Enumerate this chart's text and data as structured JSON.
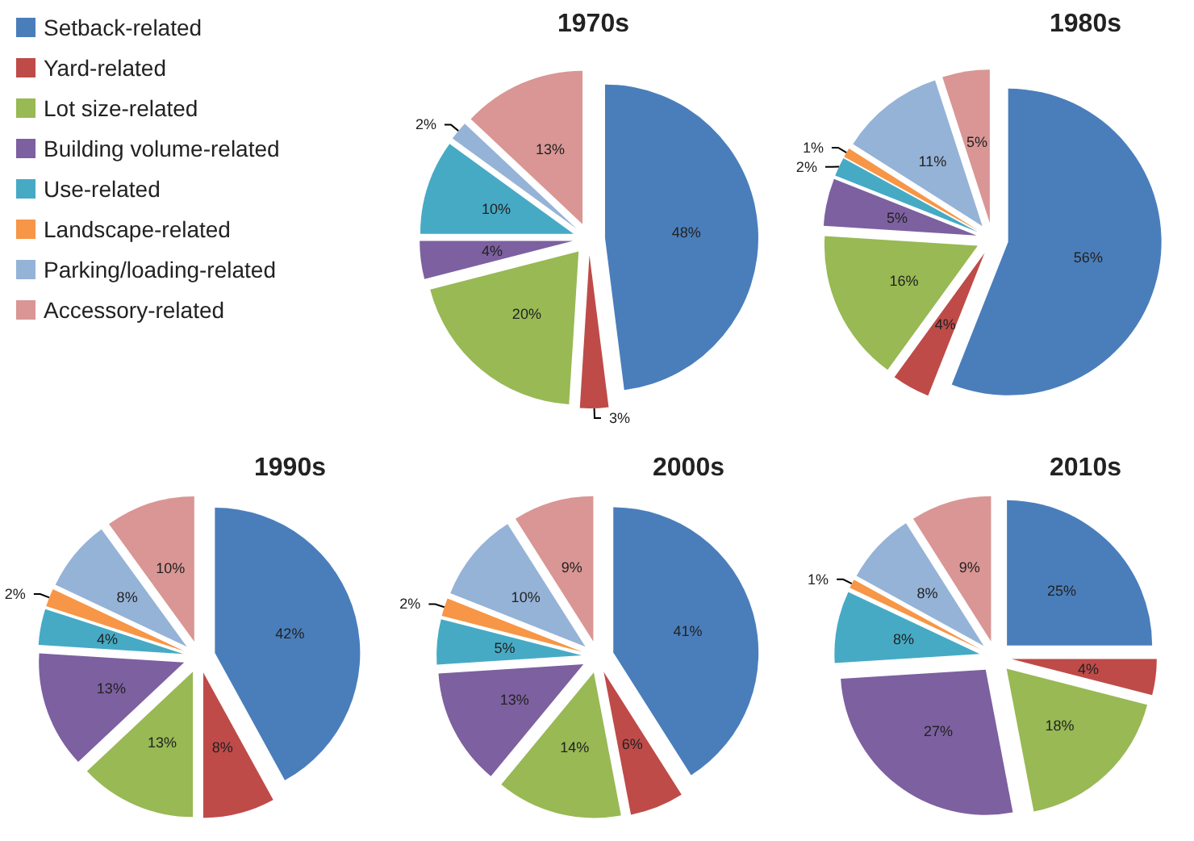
{
  "chart_data": [
    {
      "type": "pie",
      "title": "1970s",
      "legend": "left",
      "categories": [
        "Setback-related",
        "Yard-related",
        "Lot size-related",
        "Building volume-related",
        "Use-related",
        "Landscape-related",
        "Parking/loading-related",
        "Accessory-related"
      ],
      "colors": [
        "#4a7ebb",
        "#be4b48",
        "#98b954",
        "#7d60a0",
        "#46aac5",
        "#f79646",
        "#95b3d7",
        "#d99694"
      ],
      "values": [
        48,
        3,
        20,
        4,
        10,
        null,
        2,
        13
      ],
      "value_labels": [
        "48%",
        "3%",
        "20%",
        "4%",
        "10%",
        null,
        "2%",
        "13%"
      ]
    },
    {
      "type": "pie",
      "title": "1980s",
      "categories": [
        null,
        null,
        null,
        null,
        null,
        null,
        null,
        null
      ],
      "colors": [
        "#4a7ebb",
        "#be4b48",
        "#98b954",
        "#7d60a0",
        "#46aac5",
        "#f79646",
        "#95b3d7",
        "#d99694"
      ],
      "values": [
        56,
        4,
        16,
        5,
        2,
        1,
        11,
        5
      ],
      "value_labels": [
        "56%",
        "4%",
        "16%",
        "5%",
        "2%",
        "1%",
        "11%",
        "5%"
      ]
    },
    {
      "type": "pie",
      "title": "1990s",
      "categories": [
        null,
        null,
        null,
        null,
        null,
        null,
        null,
        null
      ],
      "colors": [
        "#4a7ebb",
        "#be4b48",
        "#98b954",
        "#7d60a0",
        "#46aac5",
        "#f79646",
        "#95b3d7",
        "#d99694"
      ],
      "values": [
        42,
        8,
        13,
        13,
        4,
        2,
        8,
        10
      ],
      "value_labels": [
        "42%",
        "8%",
        "13%",
        "13%",
        "4%",
        "2%",
        "8%",
        "10%"
      ]
    },
    {
      "type": "pie",
      "title": "2000s",
      "categories": [
        null,
        null,
        null,
        null,
        null,
        null,
        null,
        null
      ],
      "colors": [
        "#4a7ebb",
        "#be4b48",
        "#98b954",
        "#7d60a0",
        "#46aac5",
        "#f79646",
        "#95b3d7",
        "#d99694"
      ],
      "values": [
        41,
        6,
        14,
        13,
        5,
        2,
        10,
        9
      ],
      "value_labels": [
        "41%",
        "6%",
        "14%",
        "13%",
        "5%",
        "2%",
        "10%",
        "9%"
      ]
    },
    {
      "type": "pie",
      "title": "2010s",
      "categories": [
        null,
        null,
        null,
        null,
        null,
        null,
        null,
        null
      ],
      "colors": [
        "#4a7ebb",
        "#be4b48",
        "#98b954",
        "#7d60a0",
        "#46aac5",
        "#f79646",
        "#95b3d7",
        "#d99694"
      ],
      "values": [
        25,
        4,
        18,
        27,
        8,
        1,
        8,
        9
      ],
      "value_labels": [
        "25%",
        "4%",
        "18%",
        "27%",
        "8%",
        "1%",
        "8%",
        "9%"
      ]
    }
  ]
}
